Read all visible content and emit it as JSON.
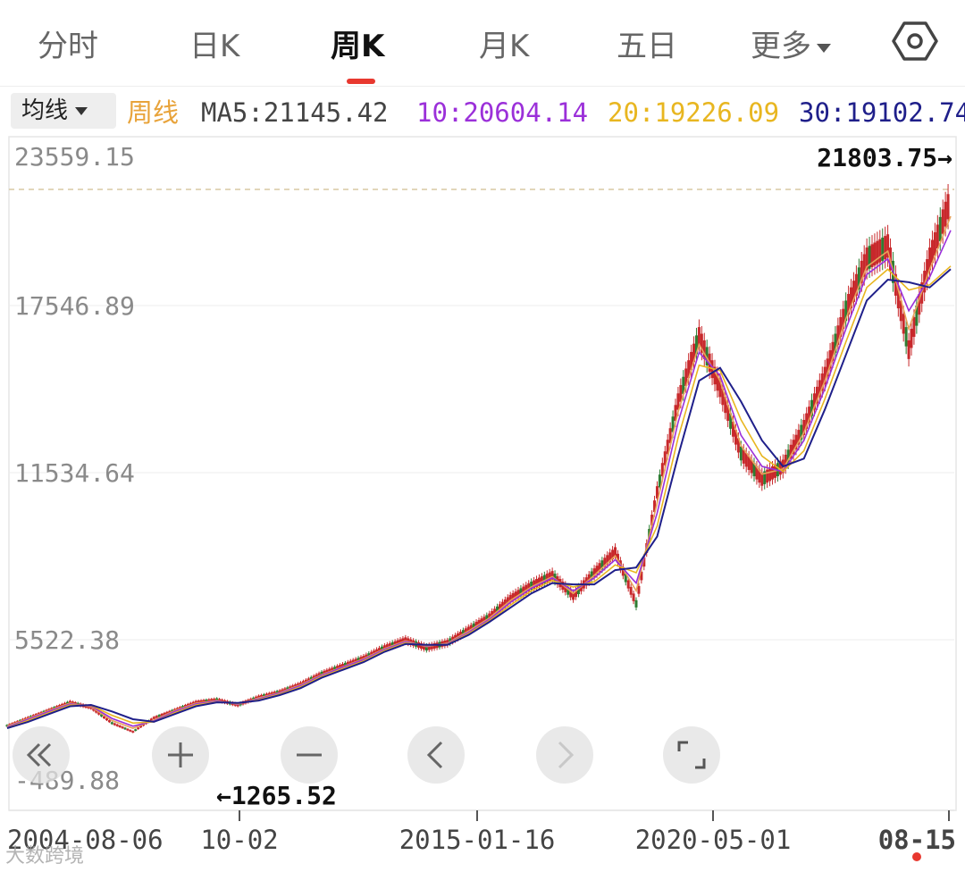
{
  "tabs": [
    {
      "label": "分时"
    },
    {
      "label": "日K"
    },
    {
      "label": "周K",
      "active": true
    },
    {
      "label": "月K"
    },
    {
      "label": "五日"
    },
    {
      "label": "更多"
    }
  ],
  "ma_bar": {
    "selector_label": "均线",
    "period_label": "周线",
    "ma5": "MA5:21145.42",
    "ma10": "10:20604.14",
    "ma20": "20:19226.09",
    "ma30": "30:19102.74"
  },
  "colors": {
    "up": "#c8282b",
    "down": "#2e7d32",
    "ma5": "#e8a25a",
    "ma10": "#9b30d9",
    "ma20": "#e8b620",
    "ma30": "#1f1f8a",
    "accent": "#e8382f"
  },
  "chart_data": {
    "type": "line",
    "y_ticks": [
      "23559.15",
      "17546.89",
      "11534.64",
      "5522.38",
      "-489.88"
    ],
    "ylim": [
      -489.88,
      23559.15
    ],
    "x_ticks": [
      "2004-08-06",
      "10-02",
      "2015-01-16",
      "2020-05-01",
      "08-15"
    ],
    "max_label": "21803.75→",
    "min_label": "←1265.52",
    "max_value": 21803.75,
    "min_value": 1265.52,
    "series": [
      {
        "key": "price",
        "values": [
          1500,
          1800,
          2100,
          2400,
          2200,
          1600,
          1265.52,
          1800,
          2100,
          2400,
          2500,
          2300,
          2600,
          2800,
          3100,
          3500,
          3800,
          4100,
          4500,
          4800,
          4500,
          4700,
          5200,
          5700,
          6400,
          6900,
          7300,
          6500,
          7400,
          8200,
          6200,
          10500,
          14000,
          16500,
          14500,
          12000,
          11000,
          11500,
          13000,
          15000,
          17500,
          19500,
          20000,
          16000,
          19500,
          21803.75
        ]
      },
      {
        "key": "ma5",
        "values": [
          1480,
          1780,
          2080,
          2370,
          2230,
          1700,
          1400,
          1720,
          2080,
          2370,
          2470,
          2320,
          2570,
          2780,
          3080,
          3470,
          3770,
          4080,
          4470,
          4770,
          4550,
          4680,
          5150,
          5650,
          6330,
          6850,
          7250,
          6600,
          7300,
          8050,
          6700,
          10100,
          13600,
          16200,
          14800,
          12300,
          11200,
          11400,
          12800,
          14800,
          17200,
          19200,
          19800,
          16800,
          19100,
          21145.42
        ]
      },
      {
        "key": "ma10",
        "values": [
          1450,
          1750,
          2050,
          2340,
          2260,
          1780,
          1480,
          1680,
          2050,
          2340,
          2450,
          2340,
          2540,
          2760,
          3050,
          3440,
          3750,
          4050,
          4440,
          4740,
          4580,
          4660,
          5100,
          5600,
          6250,
          6800,
          7200,
          6700,
          7200,
          7900,
          7000,
          9700,
          13200,
          15900,
          15000,
          12700,
          11500,
          11300,
          12500,
          14500,
          16800,
          18900,
          19500,
          17500,
          18800,
          20604.14
        ]
      },
      {
        "key": "ma20",
        "values": [
          1420,
          1700,
          2000,
          2300,
          2280,
          1900,
          1600,
          1650,
          2000,
          2300,
          2420,
          2360,
          2500,
          2720,
          3000,
          3400,
          3700,
          4000,
          4400,
          4700,
          4600,
          4640,
          5050,
          5550,
          6150,
          6700,
          7100,
          6850,
          7050,
          7700,
          7400,
          9200,
          12600,
          15400,
          15200,
          13300,
          11900,
          11300,
          12100,
          14100,
          16300,
          18400,
          19100,
          18300,
          18500,
          19226.09
        ]
      },
      {
        "key": "ma30",
        "values": [
          1400,
          1650,
          1950,
          2250,
          2300,
          2050,
          1750,
          1650,
          1950,
          2250,
          2400,
          2380,
          2470,
          2680,
          2950,
          3350,
          3650,
          3950,
          4350,
          4650,
          4620,
          4620,
          5000,
          5500,
          6050,
          6600,
          7000,
          6950,
          6950,
          7500,
          7600,
          8800,
          11900,
          14800,
          15300,
          14000,
          12500,
          11500,
          11800,
          13700,
          15800,
          17900,
          18700,
          18600,
          18400,
          19102.74
        ]
      }
    ]
  },
  "controls": {
    "rewind": "rewind-icon",
    "zoom_in": "plus-icon",
    "zoom_out": "minus-icon",
    "prev": "chevron-left-icon",
    "next": "chevron-right-icon",
    "fullscreen": "fullscreen-icon"
  },
  "watermark": "大数跨境"
}
